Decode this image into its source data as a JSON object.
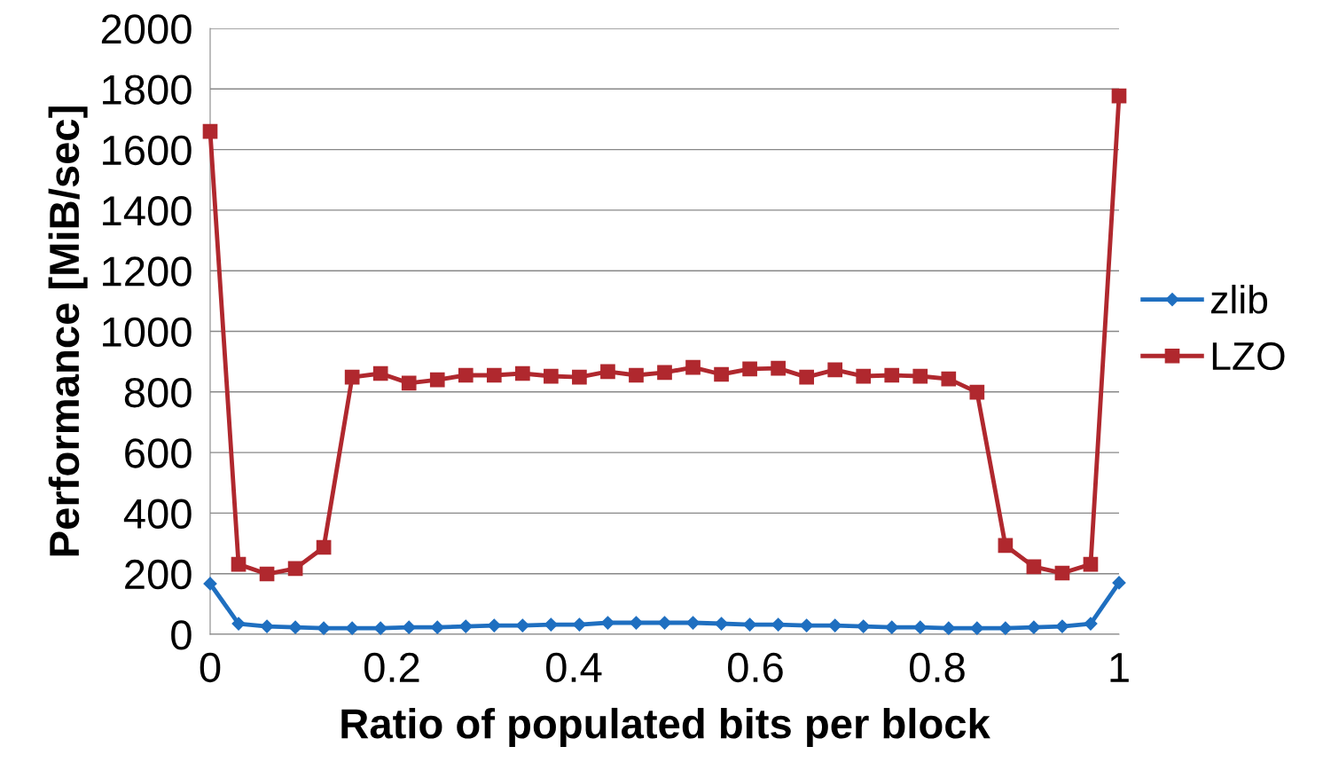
{
  "chart_data": {
    "type": "line",
    "xlabel": "Ratio of populated bits per block",
    "ylabel": "Performance [MiB/sec]",
    "x": [
      0,
      0.03125,
      0.0625,
      0.09375,
      0.125,
      0.15625,
      0.1875,
      0.21875,
      0.25,
      0.28125,
      0.3125,
      0.34375,
      0.375,
      0.40625,
      0.4375,
      0.46875,
      0.5,
      0.53125,
      0.5625,
      0.59375,
      0.625,
      0.65625,
      0.6875,
      0.71875,
      0.75,
      0.78125,
      0.8125,
      0.84375,
      0.875,
      0.90625,
      0.9375,
      0.96875,
      1
    ],
    "series": [
      {
        "name": "zlib",
        "color": "#1f6fc0",
        "marker": "diamond",
        "values": [
          167,
          35,
          26,
          23,
          20,
          20,
          20,
          23,
          23,
          26,
          29,
          29,
          32,
          32,
          38,
          38,
          38,
          38,
          35,
          32,
          32,
          29,
          29,
          26,
          23,
          23,
          20,
          20,
          20,
          23,
          26,
          35,
          170
        ]
      },
      {
        "name": "LZO",
        "color": "#b0282e",
        "marker": "square",
        "values": [
          1660,
          231,
          199,
          217,
          287,
          849,
          861,
          829,
          840,
          855,
          855,
          861,
          852,
          849,
          867,
          855,
          864,
          881,
          858,
          876,
          878,
          849,
          873,
          852,
          855,
          852,
          843,
          799,
          293,
          223,
          202,
          231,
          1777
        ]
      }
    ],
    "xlim": [
      0,
      1
    ],
    "xticks": [
      0,
      0.2,
      0.4,
      0.6,
      0.8,
      1
    ],
    "ylim": [
      0,
      2000
    ],
    "yticks": [
      0,
      200,
      400,
      600,
      800,
      1000,
      1200,
      1400,
      1600,
      1800,
      2000
    ],
    "grid": "y",
    "legend": "right",
    "line_style": "solid"
  }
}
